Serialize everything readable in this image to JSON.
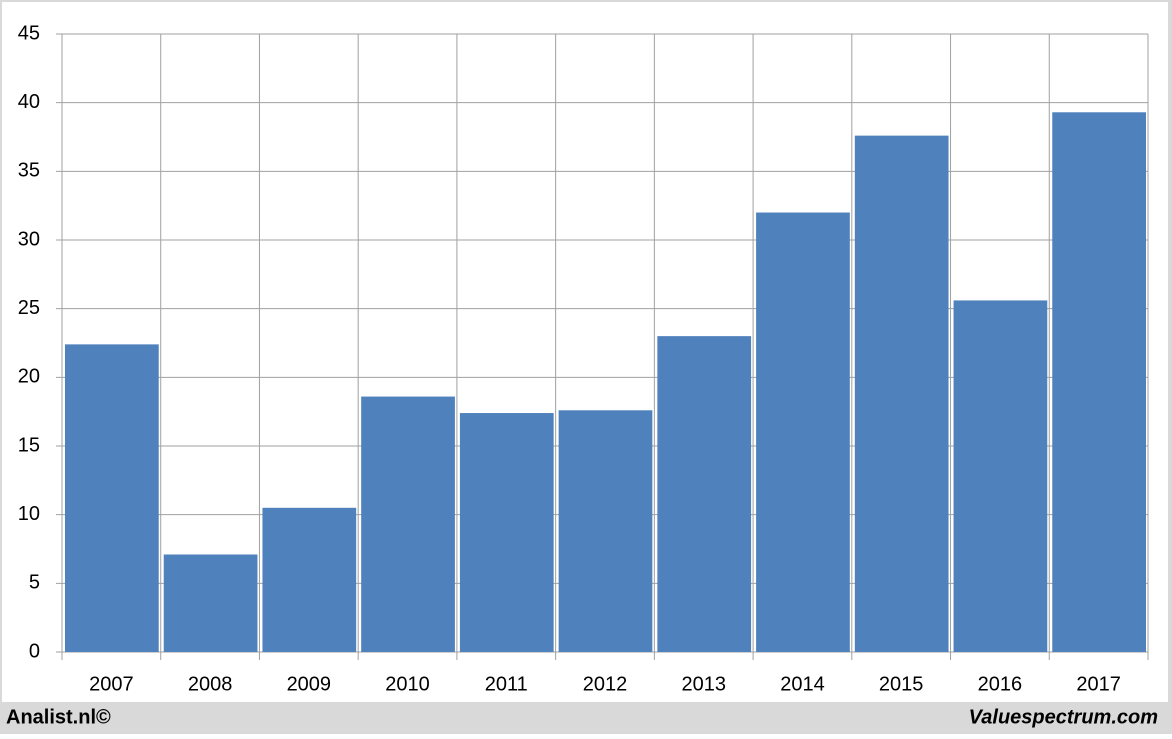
{
  "chart_data": {
    "type": "bar",
    "categories": [
      "2007",
      "2008",
      "2009",
      "2010",
      "2011",
      "2012",
      "2013",
      "2014",
      "2015",
      "2016",
      "2017"
    ],
    "values": [
      22.4,
      7.1,
      10.5,
      18.6,
      17.4,
      17.6,
      23.0,
      32.0,
      37.6,
      25.6,
      39.3
    ],
    "color": "#4f81bd",
    "ylim": [
      0,
      45
    ],
    "yticks": [
      0,
      5,
      10,
      15,
      20,
      25,
      30,
      35,
      40,
      45
    ],
    "grid": true,
    "annotations": [
      "Analist.nl©",
      "Valuespectrum.com"
    ]
  }
}
